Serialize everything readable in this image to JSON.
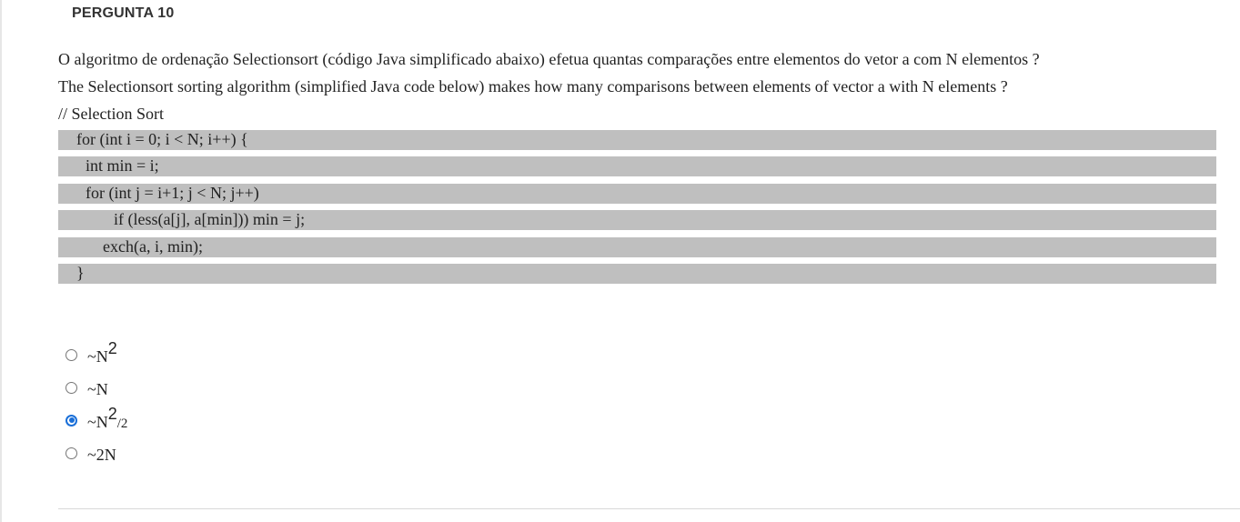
{
  "question": {
    "header": "PERGUNTA 10",
    "text_pt": "O algoritmo de ordenação Selectionsort (código Java simplificado abaixo) efetua quantas comparações entre elementos do vetor a com N elementos ?",
    "text_en": "The Selectionsort sorting algorithm (simplified Java code below) makes how many comparisons between elements of vector a with N elements ?",
    "code_comment": "// Selection Sort",
    "code_lines": [
      "for (int i = 0; i < N; i++) {",
      "int min = i;",
      "for (int j = i+1; j < N; j++)",
      "if (less(a[j], a[min])) min = j;",
      "exch(a, i, min);",
      "}"
    ]
  },
  "options": [
    {
      "prefix": "~N",
      "sup": "2",
      "tail": "",
      "selected": false
    },
    {
      "prefix": "~N",
      "sup": "",
      "tail": "",
      "selected": false
    },
    {
      "prefix": "~N",
      "sup": "2",
      "tail": "/2",
      "selected": true
    },
    {
      "prefix": "~2N",
      "sup": "",
      "tail": "",
      "selected": false
    }
  ],
  "colors": {
    "code_background": "#bfbfbf",
    "radio_selected": "#1a6fd8",
    "text": "#222222"
  }
}
